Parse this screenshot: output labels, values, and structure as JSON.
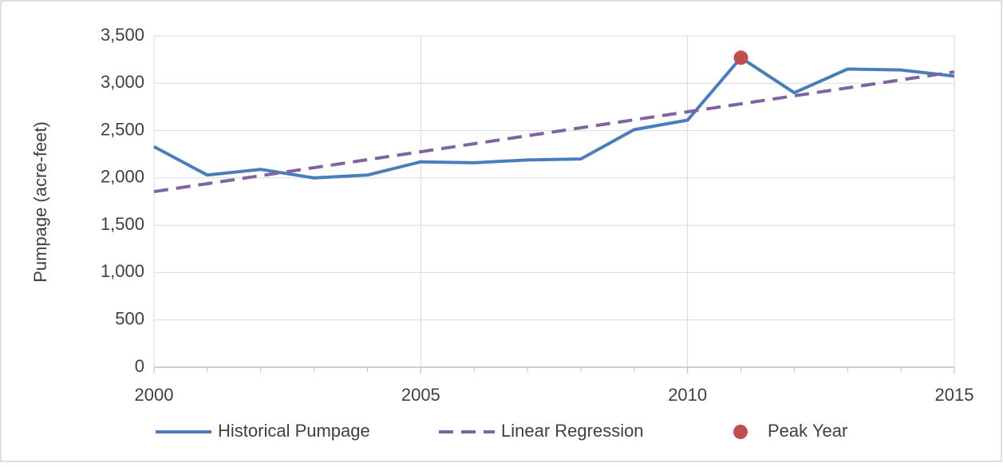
{
  "chart_data": {
    "type": "line",
    "ylabel": "Pumpage (acre-feet)",
    "xlim": [
      2000,
      2015
    ],
    "xticks": [
      2000,
      2005,
      2010,
      2015
    ],
    "ylim": [
      0,
      3500
    ],
    "yticks": [
      0,
      500,
      {
        "value": 1000,
        "label": "1,000"
      },
      {
        "value": 1500,
        "label": "1,500"
      },
      {
        "value": 2000,
        "label": "2,000"
      },
      {
        "value": 2500,
        "label": "2,500"
      },
      {
        "value": 3000,
        "label": "3,000"
      },
      {
        "value": 3500,
        "label": "3,500"
      }
    ],
    "grid": true,
    "legend": "bottom",
    "series": [
      {
        "name": "Historical Pumpage",
        "color": "#4a7ebb",
        "style": "solid",
        "x": [
          2000,
          2001,
          2002,
          2003,
          2004,
          2005,
          2006,
          2007,
          2008,
          2009,
          2010,
          2011,
          2012,
          2013,
          2014,
          2015
        ],
        "values": [
          2330,
          2030,
          2090,
          2000,
          2030,
          2170,
          2160,
          2190,
          2200,
          2510,
          2610,
          3270,
          2900,
          3150,
          3140,
          3075
        ]
      },
      {
        "name": "Linear Regression",
        "color": "#8064a2",
        "style": "dashed",
        "x": [
          2000,
          2015
        ],
        "values": [
          1855,
          3120
        ]
      },
      {
        "name": "Peak Year",
        "color": "#c0504d",
        "style": "marker",
        "x": [
          2011
        ],
        "values": [
          3270
        ]
      }
    ]
  }
}
